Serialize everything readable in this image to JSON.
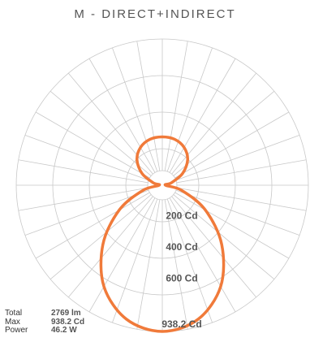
{
  "chart_data": {
    "type": "polar",
    "title": "M - DIRECT+INDIRECT",
    "unit": "Cd",
    "radial_max": 938.2,
    "radial_rings": [
      200,
      400,
      600,
      938.2
    ],
    "ring_labels": [
      "200 Cd",
      "400 Cd",
      "600 Cd",
      "938.2 Cd"
    ],
    "grid": true,
    "series": [
      {
        "color": "#f07a3a",
        "angle_deg": [
          0,
          15,
          30,
          45,
          60,
          75,
          90,
          105,
          120,
          135,
          150,
          165,
          180
        ],
        "values": [
          938.2,
          890,
          750,
          540,
          320,
          130,
          20,
          60,
          150,
          230,
          280,
          305,
          310
        ]
      }
    ]
  },
  "stats": [
    {
      "label": "Total",
      "value": "2769 lm"
    },
    {
      "label": "Max",
      "value": "938.2 Cd"
    },
    {
      "label": "Power",
      "value": "46.2 W"
    }
  ],
  "colors": {
    "curve": "#f07a3a",
    "grid": "#c8c8c8",
    "text": "#555555"
  }
}
